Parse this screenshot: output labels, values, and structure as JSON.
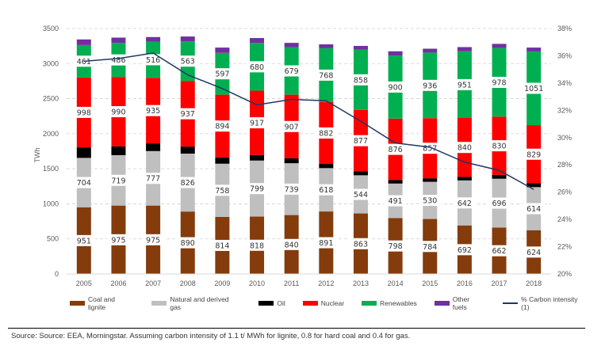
{
  "chart_data": {
    "type": "bar",
    "stacked": true,
    "title": "",
    "xlabel": "",
    "ylabel": "TWh",
    "ylim": [
      0,
      3500
    ],
    "yticks": [
      0,
      500,
      1000,
      1500,
      2000,
      2500,
      3000,
      3500
    ],
    "y2lim": [
      20,
      38
    ],
    "y2ticks": [
      "20%",
      "22%",
      "24%",
      "26%",
      "28%",
      "30%",
      "32%",
      "34%",
      "36%",
      "38%"
    ],
    "grid": true,
    "legend_position": "bottom",
    "categories": [
      "2005",
      "2006",
      "2007",
      "2008",
      "2009",
      "2010",
      "2011",
      "2012",
      "2013",
      "2014",
      "2015",
      "2016",
      "2017",
      "2018"
    ],
    "series": [
      {
        "name": "Coal and lignite",
        "color": "#843C0C",
        "values": [
          951,
          975,
          975,
          890,
          814,
          818,
          840,
          891,
          863,
          798,
          784,
          692,
          662,
          624
        ],
        "labeled": true
      },
      {
        "name": "Natural and derived gas",
        "color": "#BFBFBF",
        "values": [
          704,
          719,
          777,
          826,
          758,
          799,
          739,
          618,
          544,
          491,
          530,
          642,
          696,
          614
        ],
        "labeled": true
      },
      {
        "name": "Oil",
        "color": "#000000",
        "values": [
          150,
          125,
          110,
          100,
          90,
          80,
          70,
          60,
          55,
          50,
          50,
          50,
          55,
          55
        ],
        "labeled": false
      },
      {
        "name": "Nuclear",
        "color": "#FF0000",
        "values": [
          998,
          990,
          935,
          937,
          894,
          917,
          907,
          882,
          877,
          876,
          857,
          840,
          830,
          829
        ],
        "labeled": true
      },
      {
        "name": "Renewables",
        "color": "#00B050",
        "values": [
          461,
          486,
          516,
          563,
          597,
          680,
          679,
          768,
          858,
          900,
          936,
          951,
          978,
          1051
        ],
        "labeled": true
      },
      {
        "name": "Other fuels",
        "color": "#7030A0",
        "values": [
          80,
          75,
          65,
          70,
          75,
          70,
          60,
          55,
          55,
          60,
          55,
          60,
          60,
          55
        ],
        "labeled": false
      }
    ],
    "line_series": {
      "name": "% Carbon intensity (1)",
      "color": "#1F3864",
      "axis": "right",
      "values": [
        35.6,
        35.8,
        36.2,
        34.6,
        33.6,
        32.4,
        32.8,
        32.7,
        31.2,
        29.6,
        29.3,
        28.2,
        27.6,
        26.2
      ]
    }
  },
  "legend": [
    {
      "label": "Coal and lignite",
      "color": "#843C0C",
      "kind": "box"
    },
    {
      "label": "Natural and derived gas",
      "color": "#BFBFBF",
      "kind": "box"
    },
    {
      "label": "Oil",
      "color": "#000000",
      "kind": "box"
    },
    {
      "label": "Nuclear",
      "color": "#FF0000",
      "kind": "box"
    },
    {
      "label": "Renewables",
      "color": "#00B050",
      "kind": "box"
    },
    {
      "label": "Other fuels",
      "color": "#7030A0",
      "kind": "box"
    },
    {
      "label": "% Carbon intensity (1)",
      "color": "#1F3864",
      "kind": "line"
    }
  ],
  "source": "Source: Source: EEA, Morningstar.  Assuming carbon intensity of 1.1 t/ MWh for lignite, 0.8 for hard coal and 0.4 for gas."
}
